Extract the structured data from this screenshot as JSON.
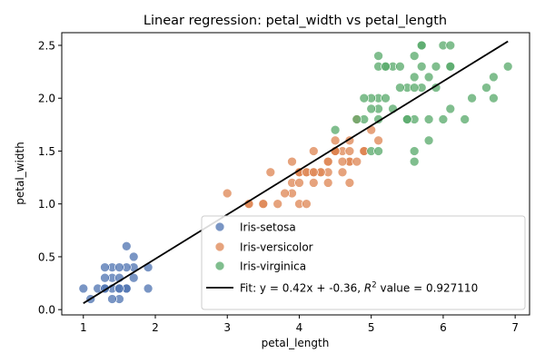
{
  "chart_data": {
    "type": "scatter",
    "title": "Linear regression: petal_width vs petal_length",
    "xlabel": "petal_length",
    "ylabel": "petal_width",
    "xlim": [
      0.7,
      7.2
    ],
    "ylim": [
      -0.05,
      2.62
    ],
    "xticks": [
      "1",
      "2",
      "3",
      "4",
      "5",
      "6",
      "7"
    ],
    "yticks": [
      "0.0",
      "0.5",
      "1.0",
      "1.5",
      "2.0",
      "2.5"
    ],
    "grid": false,
    "legend_position": "lower-right",
    "series": [
      {
        "name": "Iris-setosa",
        "color": "#4c72b0",
        "points": [
          [
            1.4,
            0.2
          ],
          [
            1.3,
            0.2
          ],
          [
            1.5,
            0.2
          ],
          [
            1.7,
            0.4
          ],
          [
            1.4,
            0.3
          ],
          [
            1.5,
            0.1
          ],
          [
            1.6,
            0.2
          ],
          [
            1.1,
            0.1
          ],
          [
            1.2,
            0.2
          ],
          [
            1.4,
            0.4
          ],
          [
            1.3,
            0.4
          ],
          [
            1.7,
            0.3
          ],
          [
            1.5,
            0.3
          ],
          [
            1.0,
            0.2
          ],
          [
            1.7,
            0.5
          ],
          [
            1.9,
            0.2
          ],
          [
            1.6,
            0.4
          ],
          [
            1.5,
            0.4
          ],
          [
            1.4,
            0.1
          ],
          [
            1.6,
            0.6
          ],
          [
            1.9,
            0.4
          ],
          [
            1.3,
            0.3
          ],
          [
            1.3,
            0.2
          ],
          [
            1.6,
            0.2
          ],
          [
            1.5,
            0.2
          ]
        ]
      },
      {
        "name": "Iris-versicolor",
        "color": "#dd8452",
        "points": [
          [
            4.7,
            1.4
          ],
          [
            4.5,
            1.5
          ],
          [
            4.9,
            1.5
          ],
          [
            4.0,
            1.3
          ],
          [
            4.6,
            1.5
          ],
          [
            3.3,
            1.0
          ],
          [
            4.6,
            1.3
          ],
          [
            3.9,
            1.4
          ],
          [
            3.5,
            1.0
          ],
          [
            4.2,
            1.5
          ],
          [
            4.0,
            1.0
          ],
          [
            4.7,
            1.4
          ],
          [
            3.6,
            1.3
          ],
          [
            4.4,
            1.4
          ],
          [
            4.5,
            1.5
          ],
          [
            4.1,
            1.0
          ],
          [
            4.5,
            1.5
          ],
          [
            3.9,
            1.1
          ],
          [
            4.8,
            1.8
          ],
          [
            4.0,
            1.3
          ],
          [
            4.9,
            1.5
          ],
          [
            4.7,
            1.2
          ],
          [
            4.3,
            1.3
          ],
          [
            4.4,
            1.4
          ],
          [
            4.8,
            1.4
          ],
          [
            5.0,
            1.7
          ],
          [
            4.5,
            1.5
          ],
          [
            3.5,
            1.0
          ],
          [
            3.8,
            1.1
          ],
          [
            3.7,
            1.0
          ],
          [
            3.9,
            1.2
          ],
          [
            5.1,
            1.6
          ],
          [
            4.5,
            1.5
          ],
          [
            4.5,
            1.6
          ],
          [
            4.7,
            1.5
          ],
          [
            4.4,
            1.3
          ],
          [
            4.1,
            1.3
          ],
          [
            4.0,
            1.3
          ],
          [
            4.4,
            1.2
          ],
          [
            4.6,
            1.4
          ],
          [
            4.0,
            1.2
          ],
          [
            3.3,
            1.0
          ],
          [
            4.2,
            1.3
          ],
          [
            4.2,
            1.2
          ],
          [
            4.3,
            1.3
          ],
          [
            3.0,
            1.1
          ],
          [
            4.1,
            1.3
          ],
          [
            4.9,
            1.5
          ],
          [
            4.7,
            1.6
          ],
          [
            4.2,
            1.3
          ]
        ]
      },
      {
        "name": "Iris-virginica",
        "color": "#55a868",
        "points": [
          [
            6.0,
            2.5
          ],
          [
            5.1,
            1.9
          ],
          [
            5.9,
            2.1
          ],
          [
            5.6,
            1.8
          ],
          [
            5.8,
            2.2
          ],
          [
            6.6,
            2.1
          ],
          [
            4.5,
            1.7
          ],
          [
            6.3,
            1.8
          ],
          [
            6.1,
            2.5
          ],
          [
            5.1,
            2.0
          ],
          [
            5.3,
            1.9
          ],
          [
            5.5,
            2.1
          ],
          [
            5.0,
            2.0
          ],
          [
            5.1,
            2.4
          ],
          [
            5.3,
            2.3
          ],
          [
            5.5,
            1.8
          ],
          [
            6.7,
            2.2
          ],
          [
            6.9,
            2.3
          ],
          [
            5.0,
            1.5
          ],
          [
            5.7,
            2.3
          ],
          [
            4.9,
            2.0
          ],
          [
            6.7,
            2.0
          ],
          [
            4.9,
            1.8
          ],
          [
            5.7,
            2.1
          ],
          [
            6.0,
            1.8
          ],
          [
            4.8,
            1.8
          ],
          [
            5.8,
            1.6
          ],
          [
            6.1,
            1.9
          ],
          [
            6.4,
            2.0
          ],
          [
            5.6,
            2.2
          ],
          [
            5.1,
            1.5
          ],
          [
            5.6,
            1.4
          ],
          [
            6.1,
            2.3
          ],
          [
            5.6,
            2.4
          ],
          [
            5.5,
            1.8
          ],
          [
            5.4,
            2.1
          ],
          [
            5.2,
            2.3
          ],
          [
            5.1,
            2.3
          ],
          [
            5.9,
            2.3
          ],
          [
            5.7,
            2.5
          ],
          [
            5.2,
            2.0
          ],
          [
            5.0,
            1.9
          ],
          [
            5.2,
            2.3
          ],
          [
            5.4,
            2.3
          ],
          [
            5.1,
            1.8
          ],
          [
            5.6,
            2.1
          ],
          [
            5.8,
            1.8
          ],
          [
            6.1,
            2.3
          ],
          [
            5.6,
            1.5
          ],
          [
            5.7,
            2.5
          ]
        ]
      }
    ],
    "fit": {
      "label": "Fit: y = 0.42x + -0.36, ",
      "r2_value": " value = 0.927110",
      "slope": 0.42,
      "intercept": -0.36,
      "x_range": [
        1.0,
        6.9
      ],
      "color": "#000000"
    }
  }
}
